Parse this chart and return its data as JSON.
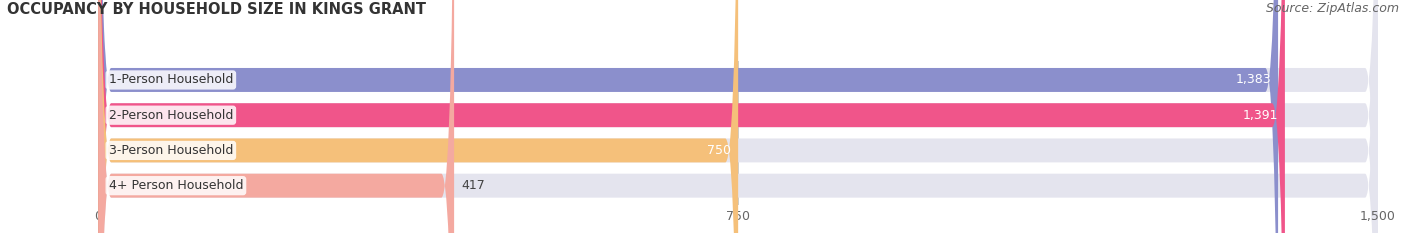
{
  "title": "OCCUPANCY BY HOUSEHOLD SIZE IN KINGS GRANT",
  "source": "Source: ZipAtlas.com",
  "categories": [
    "1-Person Household",
    "2-Person Household",
    "3-Person Household",
    "4+ Person Household"
  ],
  "values": [
    1383,
    1391,
    750,
    417
  ],
  "bar_colors": [
    "#8b8fcc",
    "#f0558a",
    "#f5c07a",
    "#f4a9a0"
  ],
  "bar_bg_color": "#e4e4ee",
  "xlim": [
    0,
    1500
  ],
  "xticks": [
    0,
    750,
    1500
  ],
  "xticklabels": [
    "0",
    "750",
    "1,500"
  ],
  "background_color": "#ffffff",
  "title_fontsize": 10.5,
  "source_fontsize": 9,
  "label_fontsize": 9,
  "value_fontsize": 9,
  "bar_height": 0.68,
  "figsize": [
    14.06,
    2.33
  ],
  "dpi": 100
}
